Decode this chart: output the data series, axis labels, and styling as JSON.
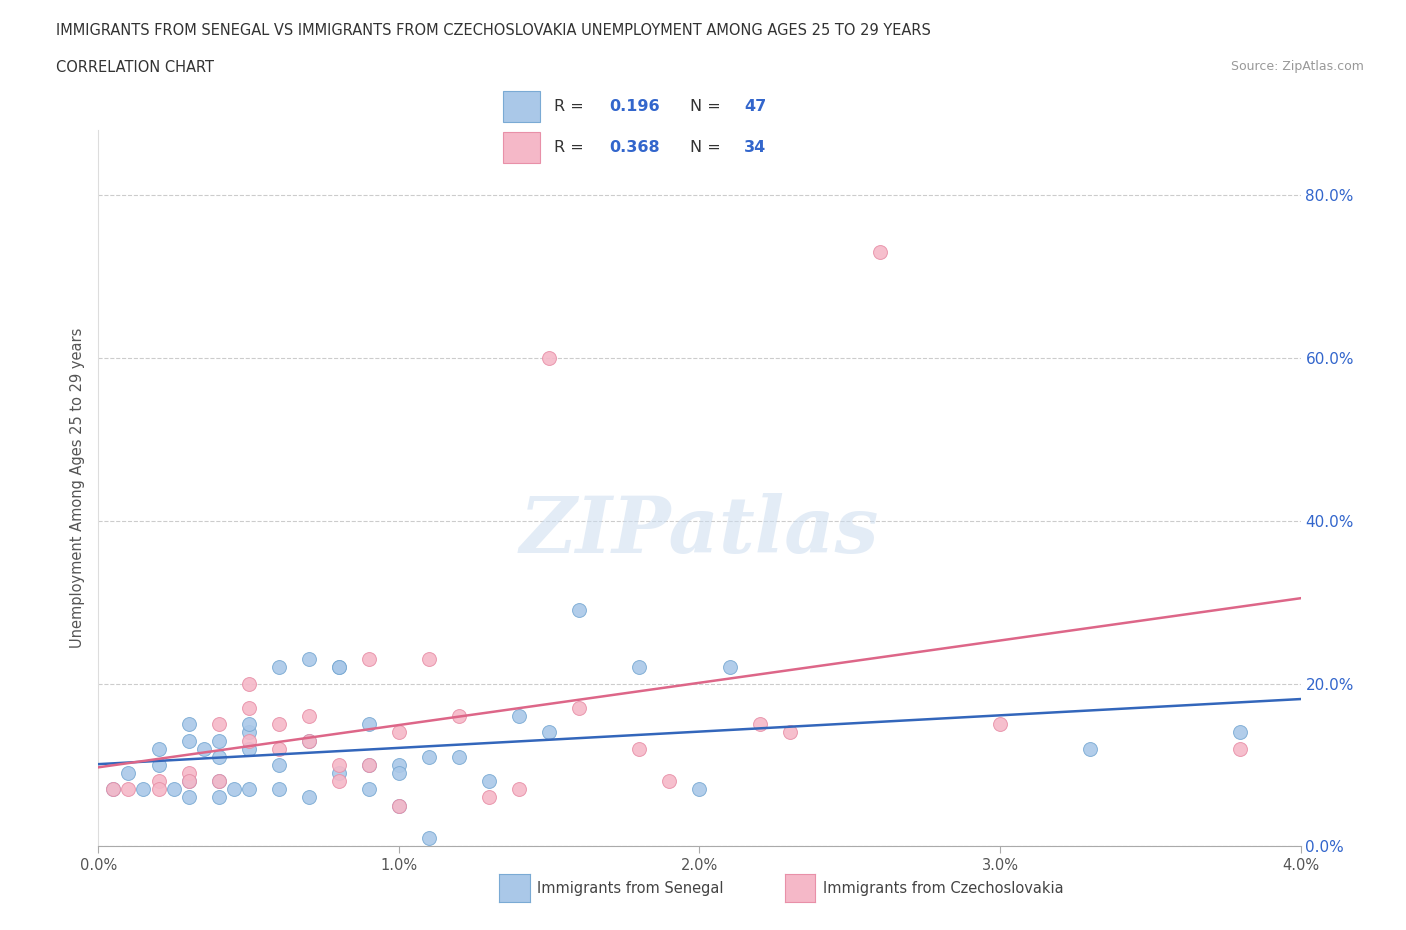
{
  "title": "IMMIGRANTS FROM SENEGAL VS IMMIGRANTS FROM CZECHOSLOVAKIA UNEMPLOYMENT AMONG AGES 25 TO 29 YEARS",
  "subtitle": "CORRELATION CHART",
  "source": "Source: ZipAtlas.com",
  "ylabel": "Unemployment Among Ages 25 to 29 years",
  "xlim": [
    0.0,
    0.04
  ],
  "ylim": [
    0.0,
    0.88
  ],
  "yticks": [
    0.0,
    0.2,
    0.4,
    0.6,
    0.8
  ],
  "ytick_labels": [
    "0.0%",
    "20.0%",
    "40.0%",
    "60.0%",
    "80.0%"
  ],
  "xticks": [
    0.0,
    0.01,
    0.02,
    0.03,
    0.04
  ],
  "xtick_labels": [
    "0.0%",
    "1.0%",
    "2.0%",
    "3.0%",
    "4.0%"
  ],
  "senegal_color": "#aac8e8",
  "senegal_edge": "#7aaad4",
  "czechoslovakia_color": "#f5b8c8",
  "czechoslovakia_edge": "#e890a8",
  "senegal_line_color": "#3366bb",
  "czechoslovakia_line_color": "#dd6688",
  "legend_text_color": "#3366cc",
  "R_senegal": "0.196",
  "N_senegal": "47",
  "R_czechoslovakia": "0.368",
  "N_czechoslovakia": "34",
  "legend_label_senegal": "Immigrants from Senegal",
  "legend_label_czechoslovakia": "Immigrants from Czechoslovakia",
  "watermark": "ZIPatlas",
  "senegal_x": [
    0.0005,
    0.001,
    0.0015,
    0.002,
    0.002,
    0.0025,
    0.003,
    0.003,
    0.003,
    0.003,
    0.0035,
    0.004,
    0.004,
    0.004,
    0.004,
    0.0045,
    0.005,
    0.005,
    0.005,
    0.005,
    0.006,
    0.006,
    0.006,
    0.007,
    0.007,
    0.007,
    0.008,
    0.008,
    0.008,
    0.009,
    0.009,
    0.009,
    0.01,
    0.01,
    0.01,
    0.011,
    0.011,
    0.012,
    0.013,
    0.014,
    0.015,
    0.016,
    0.018,
    0.02,
    0.021,
    0.033,
    0.038
  ],
  "senegal_y": [
    0.07,
    0.09,
    0.07,
    0.12,
    0.1,
    0.07,
    0.13,
    0.15,
    0.08,
    0.06,
    0.12,
    0.11,
    0.13,
    0.08,
    0.06,
    0.07,
    0.14,
    0.15,
    0.12,
    0.07,
    0.22,
    0.1,
    0.07,
    0.23,
    0.13,
    0.06,
    0.22,
    0.22,
    0.09,
    0.15,
    0.1,
    0.07,
    0.1,
    0.09,
    0.05,
    0.11,
    0.01,
    0.11,
    0.08,
    0.16,
    0.14,
    0.29,
    0.22,
    0.07,
    0.22,
    0.12,
    0.14
  ],
  "czechoslovakia_x": [
    0.0005,
    0.001,
    0.002,
    0.002,
    0.003,
    0.003,
    0.004,
    0.004,
    0.005,
    0.005,
    0.005,
    0.006,
    0.006,
    0.007,
    0.007,
    0.008,
    0.008,
    0.009,
    0.009,
    0.01,
    0.01,
    0.011,
    0.012,
    0.013,
    0.014,
    0.015,
    0.016,
    0.018,
    0.019,
    0.022,
    0.023,
    0.026,
    0.03,
    0.038
  ],
  "czechoslovakia_y": [
    0.07,
    0.07,
    0.08,
    0.07,
    0.09,
    0.08,
    0.15,
    0.08,
    0.2,
    0.17,
    0.13,
    0.15,
    0.12,
    0.16,
    0.13,
    0.1,
    0.08,
    0.23,
    0.1,
    0.14,
    0.05,
    0.23,
    0.16,
    0.06,
    0.07,
    0.6,
    0.17,
    0.12,
    0.08,
    0.15,
    0.14,
    0.73,
    0.15,
    0.12
  ]
}
